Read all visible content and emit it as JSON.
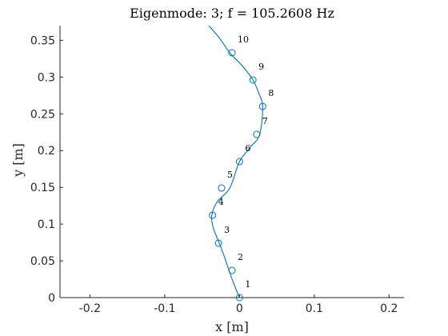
{
  "chart_data": {
    "type": "line",
    "title": "Eigenmode: 3; f = 105.2608 Hz",
    "xlabel": "x [m]",
    "ylabel": "y [m]",
    "xlim": [
      -0.24,
      0.22
    ],
    "ylim": [
      0,
      0.37
    ],
    "xticks": [
      -0.2,
      -0.1,
      0,
      0.1,
      0.2
    ],
    "xtick_labels": [
      "-0.2",
      "-0.1",
      "0",
      "0.1",
      "0.2"
    ],
    "yticks": [
      0,
      0.05,
      0.1,
      0.15,
      0.2,
      0.25,
      0.3,
      0.35
    ],
    "ytick_labels": [
      "0",
      "0.05",
      "0.1",
      "0.15",
      "0.2",
      "0.25",
      "0.3",
      "0.35"
    ],
    "grid": false,
    "color": "#0072BD",
    "curve": {
      "x": [
        0.0,
        -0.008,
        -0.014,
        -0.02,
        -0.027,
        -0.035,
        -0.037,
        -0.03,
        -0.013,
        0.0,
        0.015,
        0.027,
        0.031,
        0.025,
        0.018,
        0.004,
        -0.013,
        -0.026,
        -0.041
      ],
      "y": [
        0.0,
        0.02,
        0.037,
        0.055,
        0.074,
        0.095,
        0.112,
        0.13,
        0.149,
        0.185,
        0.205,
        0.222,
        0.26,
        0.28,
        0.296,
        0.315,
        0.333,
        0.352,
        0.37
      ]
    },
    "nodes": [
      {
        "label": "1",
        "x": 0.0,
        "y": 0.0
      },
      {
        "label": "2",
        "x": -0.01,
        "y": 0.037
      },
      {
        "label": "3",
        "x": -0.028,
        "y": 0.074
      },
      {
        "label": "4",
        "x": -0.036,
        "y": 0.112
      },
      {
        "label": "5",
        "x": -0.024,
        "y": 0.149
      },
      {
        "label": "6",
        "x": 0.0,
        "y": 0.185
      },
      {
        "label": "7",
        "x": 0.023,
        "y": 0.222
      },
      {
        "label": "8",
        "x": 0.031,
        "y": 0.26
      },
      {
        "label": "9",
        "x": 0.018,
        "y": 0.296
      },
      {
        "label": "10",
        "x": -0.01,
        "y": 0.333
      }
    ]
  }
}
